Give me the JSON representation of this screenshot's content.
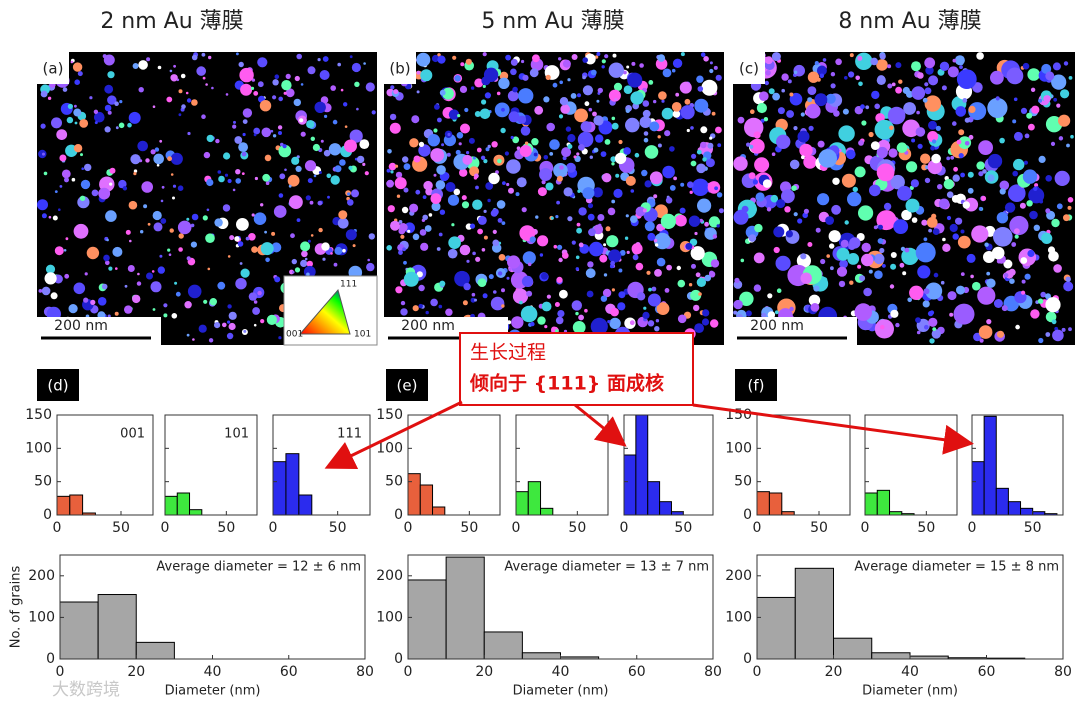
{
  "column_titles": [
    "2 nm Au 薄膜",
    "5 nm Au 薄膜",
    "8 nm Au 薄膜"
  ],
  "panels": [
    "(a)",
    "(b)",
    "(c)",
    "(d)",
    "(e)",
    "(f)"
  ],
  "scale_bar": "200 nm",
  "ipf_legend": [
    "111",
    "001",
    "101"
  ],
  "callout": [
    "生长过程",
    "倾向于 {111} 面成核"
  ],
  "watermark": "大数跨境",
  "chart_data": [
    {
      "type": "histogram",
      "bins": [
        0,
        10,
        20,
        30
      ],
      "values": [
        28,
        30,
        3
      ],
      "color": "#e8603c",
      "xlim": [
        0,
        75
      ],
      "ylim": [
        0,
        150
      ],
      "xticks": [
        0,
        50
      ],
      "yticks": [
        0,
        50,
        100,
        150
      ],
      "show_yticklabels": true,
      "annotation": "001"
    },
    {
      "type": "histogram",
      "bins": [
        0,
        10,
        20,
        30
      ],
      "values": [
        28,
        33,
        8
      ],
      "color": "#3ee83e",
      "xlim": [
        0,
        75
      ],
      "ylim": [
        0,
        150
      ],
      "xticks": [
        0,
        50
      ],
      "yticks": [
        0,
        50,
        100,
        150
      ],
      "show_yticklabels": false,
      "annotation": "101"
    },
    {
      "type": "histogram",
      "bins": [
        0,
        10,
        20,
        30
      ],
      "values": [
        80,
        92,
        30
      ],
      "color": "#2b2bee",
      "xlim": [
        0,
        75
      ],
      "ylim": [
        0,
        150
      ],
      "xticks": [
        0,
        50
      ],
      "yticks": [
        0,
        50,
        100,
        150
      ],
      "show_yticklabels": false,
      "annotation": "111"
    },
    {
      "type": "histogram",
      "bins": [
        0,
        10,
        20,
        30
      ],
      "values": [
        137,
        155,
        40
      ],
      "color": "#a6a6a6",
      "xlim": [
        0,
        80
      ],
      "ylim": [
        0,
        250
      ],
      "xticks": [
        0,
        20,
        40,
        60,
        80
      ],
      "yticks": [
        0,
        100,
        200
      ],
      "show_yticklabels": true,
      "annotation": "Average diameter = 12 ± 6 nm",
      "xlabel": "Diameter (nm)",
      "ylabel": "No. of grains"
    },
    {
      "type": "histogram",
      "bins": [
        0,
        10,
        20,
        30
      ],
      "values": [
        62,
        45,
        12
      ],
      "color": "#e8603c",
      "xlim": [
        0,
        75
      ],
      "ylim": [
        0,
        150
      ],
      "xticks": [
        0,
        50
      ],
      "yticks": [
        0,
        50,
        100,
        150
      ],
      "show_yticklabels": true
    },
    {
      "type": "histogram",
      "bins": [
        0,
        10,
        20,
        30
      ],
      "values": [
        35,
        50,
        10
      ],
      "color": "#3ee83e",
      "xlim": [
        0,
        75
      ],
      "ylim": [
        0,
        150
      ],
      "xticks": [
        0,
        50
      ],
      "yticks": [
        0,
        50,
        100,
        150
      ],
      "show_yticklabels": false
    },
    {
      "type": "histogram",
      "bins": [
        0,
        10,
        20,
        30,
        40,
        50
      ],
      "values": [
        90,
        150,
        50,
        20,
        5
      ],
      "color": "#2b2bee",
      "xlim": [
        0,
        75
      ],
      "ylim": [
        0,
        150
      ],
      "xticks": [
        0,
        50
      ],
      "yticks": [
        0,
        50,
        100,
        150
      ],
      "show_yticklabels": false
    },
    {
      "type": "histogram",
      "bins": [
        0,
        10,
        20,
        30,
        40,
        50
      ],
      "values": [
        190,
        245,
        65,
        15,
        5
      ],
      "color": "#a6a6a6",
      "xlim": [
        0,
        80
      ],
      "ylim": [
        0,
        250
      ],
      "xticks": [
        0,
        20,
        40,
        60,
        80
      ],
      "yticks": [
        0,
        100,
        200
      ],
      "show_yticklabels": true,
      "annotation": "Average diameter = 13 ± 7 nm",
      "xlabel": "Diameter (nm)"
    },
    {
      "type": "histogram",
      "bins": [
        0,
        10,
        20,
        30
      ],
      "values": [
        35,
        33,
        5
      ],
      "color": "#e8603c",
      "xlim": [
        0,
        75
      ],
      "ylim": [
        0,
        150
      ],
      "xticks": [
        0,
        50
      ],
      "yticks": [
        0,
        50,
        100,
        150
      ],
      "show_yticklabels": true
    },
    {
      "type": "histogram",
      "bins": [
        0,
        10,
        20,
        30,
        40
      ],
      "values": [
        33,
        37,
        5,
        2
      ],
      "color": "#3ee83e",
      "xlim": [
        0,
        75
      ],
      "ylim": [
        0,
        150
      ],
      "xticks": [
        0,
        50
      ],
      "yticks": [
        0,
        50,
        100,
        150
      ],
      "show_yticklabels": false
    },
    {
      "type": "histogram",
      "bins": [
        0,
        10,
        20,
        30,
        40,
        50,
        60,
        70
      ],
      "values": [
        80,
        148,
        40,
        20,
        10,
        5,
        2
      ],
      "color": "#2b2bee",
      "xlim": [
        0,
        75
      ],
      "ylim": [
        0,
        150
      ],
      "xticks": [
        0,
        50
      ],
      "yticks": [
        0,
        50,
        100,
        150
      ],
      "show_yticklabels": false
    },
    {
      "type": "histogram",
      "bins": [
        0,
        10,
        20,
        30,
        40,
        50,
        60,
        70
      ],
      "values": [
        148,
        218,
        50,
        15,
        7,
        3,
        2
      ],
      "color": "#a6a6a6",
      "xlim": [
        0,
        80
      ],
      "ylim": [
        0,
        250
      ],
      "xticks": [
        0,
        20,
        40,
        60,
        80
      ],
      "yticks": [
        0,
        100,
        200
      ],
      "show_yticklabels": true,
      "annotation": "Average diameter = 15 ± 8 nm",
      "xlabel": "Diameter (nm)"
    }
  ]
}
